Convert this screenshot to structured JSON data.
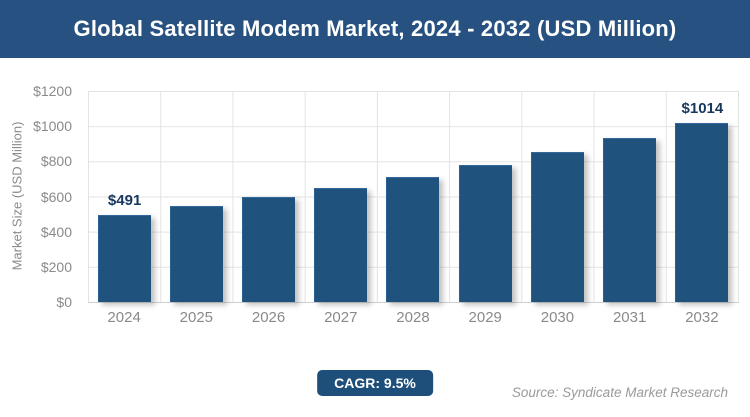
{
  "header": {
    "title": "Global Satellite Modem Market, 2024 - 2032 (USD Million)"
  },
  "chart_data": {
    "type": "bar",
    "title": "Global Satellite Modem Market, 2024 - 2032 (USD Million)",
    "categories": [
      "2024",
      "2025",
      "2026",
      "2027",
      "2028",
      "2029",
      "2030",
      "2031",
      "2032"
    ],
    "values": [
      491,
      538,
      589,
      645,
      706,
      773,
      846,
      927,
      1014
    ],
    "point_labels": [
      "$491",
      "",
      "",
      "",
      "",
      "",
      "",
      "",
      "$1014"
    ],
    "xlabel": "",
    "ylabel": "Market Size (USD Million)",
    "ylim": [
      0,
      1200
    ],
    "ytick_labels": [
      "$1200",
      "$1000",
      "$800",
      "$600",
      "$400",
      "$200",
      "$0"
    ],
    "grid": "on",
    "legend": "none"
  },
  "footer": {
    "cagr_badge": "CAGR: 9.5%",
    "source": "Source: Syndicate Market Research"
  },
  "colors": {
    "header_bg": "#265180",
    "bar_fill": "#20527E",
    "badge_bg": "#1E4E7A",
    "value_label": "#17375E",
    "grid_line": "#E3E3E3",
    "tick_text": "#8A8A8A"
  }
}
